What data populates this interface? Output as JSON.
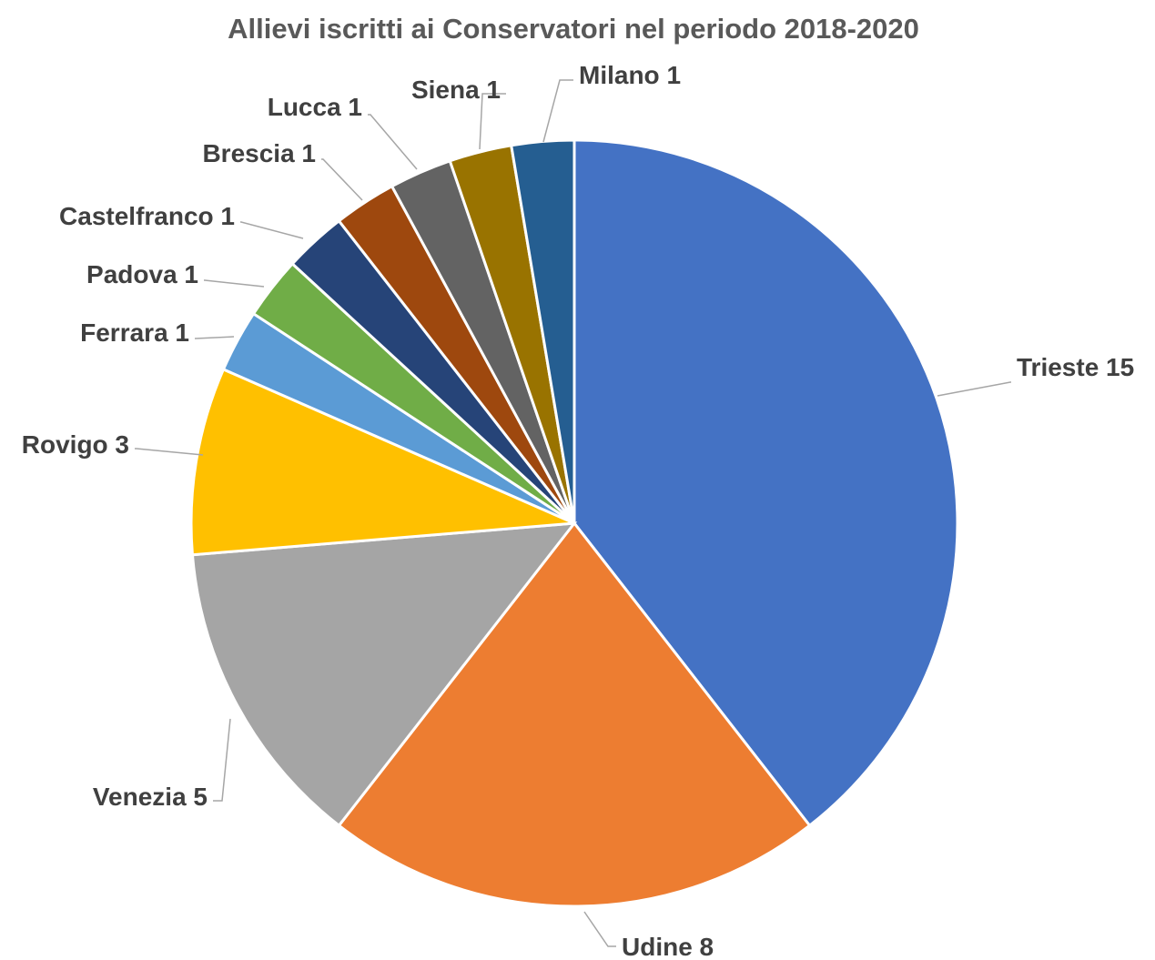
{
  "chart_data": {
    "type": "pie",
    "title": "Allievi iscritti ai Conservatori nel periodo 2018-2020",
    "slices": [
      {
        "label": "Trieste",
        "value": 15,
        "color": "#4472C4"
      },
      {
        "label": "Udine",
        "value": 8,
        "color": "#ED7D31"
      },
      {
        "label": "Venezia",
        "value": 5,
        "color": "#A5A5A5"
      },
      {
        "label": "Rovigo",
        "value": 3,
        "color": "#FFC000"
      },
      {
        "label": "Ferrara",
        "value": 1,
        "color": "#5B9BD5"
      },
      {
        "label": "Padova",
        "value": 1,
        "color": "#70AD47"
      },
      {
        "label": "Castelfranco",
        "value": 1,
        "color": "#264478"
      },
      {
        "label": "Brescia",
        "value": 1,
        "color": "#9E480E"
      },
      {
        "label": "Lucca",
        "value": 1,
        "color": "#636363"
      },
      {
        "label": "Siena",
        "value": 1,
        "color": "#997300"
      },
      {
        "label": "Milano",
        "value": 1,
        "color": "#255E91"
      }
    ],
    "start_angle": "12 o'clock",
    "direction": "clockwise",
    "legend": "none",
    "data_labels": "outside-end with leader lines"
  }
}
